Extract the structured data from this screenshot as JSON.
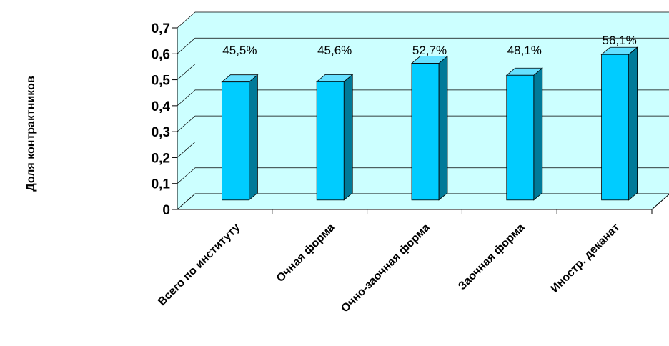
{
  "chart_data": {
    "type": "bar",
    "title": "",
    "xlabel": "",
    "ylabel": "Доля контрактников",
    "categories": [
      "Всего по институту",
      "Очная форма",
      "Очно-заочная форма",
      "Заочная форма",
      "Иностр. деканат"
    ],
    "values": [
      0.455,
      0.456,
      0.527,
      0.481,
      0.561
    ],
    "data_labels": [
      "45,5%",
      "45,6%",
      "52,7%",
      "48,1%",
      "56,1%"
    ],
    "yticks": [
      "0",
      "0,1",
      "0,2",
      "0,3",
      "0,4",
      "0,5",
      "0,6",
      "0,7"
    ],
    "ylim": [
      0,
      0.7
    ],
    "grid": true,
    "legend": "none",
    "colors": {
      "bar_front": "#00ccff",
      "bar_side": "#007a99",
      "bar_top": "#66e0ff",
      "back_wall": "#ccffff",
      "floor": "#ccffff",
      "gridline": "#000000"
    }
  }
}
